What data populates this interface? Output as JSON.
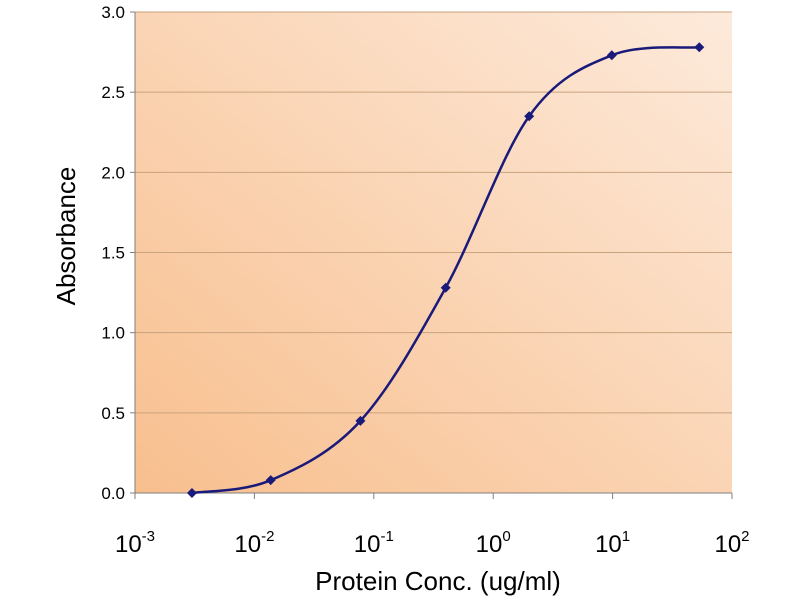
{
  "chart_data": {
    "type": "line",
    "x_scale": "log10",
    "title": "",
    "xlabel": "Protein Conc. (ug/ml)",
    "ylabel": "Absorbance",
    "xlim": [
      0.001,
      100
    ],
    "ylim": [
      0,
      3.0
    ],
    "y_ticks": [
      "0.0",
      "0.5",
      "1.0",
      "1.5",
      "2.0",
      "2.5",
      "3.0"
    ],
    "x_ticks": [
      {
        "base": "10",
        "exp": "-3"
      },
      {
        "base": "10",
        "exp": "-2"
      },
      {
        "base": "10",
        "exp": "-1"
      },
      {
        "base": "10",
        "exp": "0"
      },
      {
        "base": "10",
        "exp": "1"
      },
      {
        "base": "10",
        "exp": "2"
      }
    ],
    "grid": "horizontal",
    "series": [
      {
        "name": "Absorbance",
        "color": "#1a1a7a",
        "marker": "diamond",
        "x": [
          0.003,
          0.0137,
          0.0773,
          0.4,
          2.0,
          9.85,
          53.2
        ],
        "y": [
          0.0,
          0.08,
          0.45,
          1.28,
          2.35,
          2.73,
          2.78
        ]
      }
    ]
  },
  "colors": {
    "plot_gradient_start": "#f8bf8e",
    "plot_gradient_end": "#fdeadb",
    "gridline": "#c9a27e",
    "axis": "#7f7f7f",
    "series": "#1a1a7a"
  }
}
